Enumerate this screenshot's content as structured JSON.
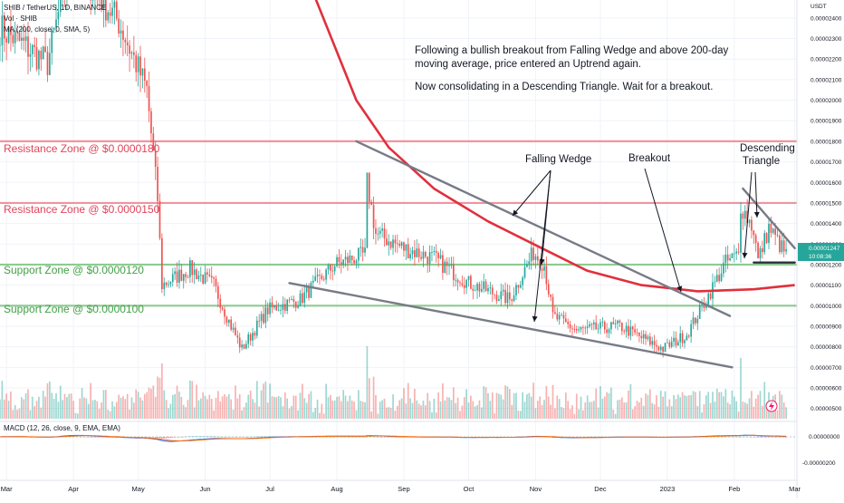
{
  "header": {
    "symbol_line": "SHIB / TetherUS, 1D, BINANCE",
    "vol_line": "Vol · SHIB",
    "ma_line": "MA (200, close, 0, SMA, 5)",
    "macd_line": "MACD (12, 26, close, 9, EMA, EMA)"
  },
  "price_axis": {
    "currency": "USDT",
    "last_price": "0.00001247",
    "countdown": "10:08:36",
    "macd_ticks": [
      "0.00000000",
      "-0.00000200"
    ]
  },
  "annotations": {
    "main_note_line1": "Following a bullish breakout from Falling Wedge and above 200-day",
    "main_note_line2": "moving average, price entered an Uptrend again.",
    "main_note_line3": "Now consolidating in a Descending Triangle. Wait for a breakout.",
    "falling_wedge": "Falling Wedge",
    "breakout": "Breakout",
    "descending_line1": "Descending",
    "descending_line2": "Triangle"
  },
  "chart_data": {
    "type": "candlestick",
    "title": "SHIB / TetherUS, 1D, BINANCE",
    "x_axis_labels": [
      "Mar",
      "Apr",
      "May",
      "Jun",
      "Jul",
      "Aug",
      "Sep",
      "Oct",
      "Nov",
      "Dec",
      "2023",
      "Feb",
      "Mar"
    ],
    "y_axis_ticks": [
      2.4e-05,
      2.3e-05,
      2.2e-05,
      2.1e-05,
      2e-05,
      1.9e-05,
      1.8e-05,
      1.7e-05,
      1.6e-05,
      1.5e-05,
      1.4e-05,
      1.3e-05,
      1.2e-05,
      1.1e-05,
      1e-05,
      9e-06,
      8e-06,
      7e-06,
      6e-06,
      5e-06
    ],
    "y_axis_tick_labels": [
      "0.00002400",
      "0.00002300",
      "0.00002200",
      "0.00002100",
      "0.00002000",
      "0.00001900",
      "0.00001800",
      "0.00001700",
      "0.00001600",
      "0.00001500",
      "0.00001400",
      "0.00001300",
      "0.00001200",
      "0.00001100",
      "0.00001000",
      "0.00000900",
      "0.00000800",
      "0.00000700",
      "0.00000600",
      "0.00000500"
    ],
    "ylim": [
      4.5e-06,
      2.47e-05
    ],
    "price_path": [
      {
        "x": "2022-02-26",
        "y": 2.35e-05
      },
      {
        "x": "2022-03-10",
        "y": 2.26e-05
      },
      {
        "x": "2022-03-20",
        "y": 2.18e-05
      },
      {
        "x": "2022-03-31",
        "y": 2.7e-05
      },
      {
        "x": "2022-04-10",
        "y": 2.55e-05
      },
      {
        "x": "2022-04-22",
        "y": 2.38e-05
      },
      {
        "x": "2022-05-05",
        "y": 2.05e-05
      },
      {
        "x": "2022-05-10",
        "y": 1.52e-05
      },
      {
        "x": "2022-05-12",
        "y": 1.1e-05
      },
      {
        "x": "2022-05-25",
        "y": 1.18e-05
      },
      {
        "x": "2022-06-05",
        "y": 1.1e-05
      },
      {
        "x": "2022-06-13",
        "y": 9e-06
      },
      {
        "x": "2022-06-18",
        "y": 7.9e-06
      },
      {
        "x": "2022-06-30",
        "y": 9.8e-06
      },
      {
        "x": "2022-07-15",
        "y": 1.03e-05
      },
      {
        "x": "2022-07-31",
        "y": 1.2e-05
      },
      {
        "x": "2022-08-14",
        "y": 1.25e-05
      },
      {
        "x": "2022-08-15",
        "y": 1.6e-05
      },
      {
        "x": "2022-08-19",
        "y": 1.35e-05
      },
      {
        "x": "2022-09-01",
        "y": 1.28e-05
      },
      {
        "x": "2022-09-15",
        "y": 1.23e-05
      },
      {
        "x": "2022-10-01",
        "y": 1.11e-05
      },
      {
        "x": "2022-10-20",
        "y": 1.03e-05
      },
      {
        "x": "2022-10-31",
        "y": 1.26e-05
      },
      {
        "x": "2022-11-05",
        "y": 1.2e-05
      },
      {
        "x": "2022-11-09",
        "y": 9.5e-06
      },
      {
        "x": "2022-11-20",
        "y": 8.8e-06
      },
      {
        "x": "2022-12-10",
        "y": 9e-06
      },
      {
        "x": "2022-12-30",
        "y": 7.9e-06
      },
      {
        "x": "2023-01-10",
        "y": 8.6e-06
      },
      {
        "x": "2023-01-20",
        "y": 1.05e-05
      },
      {
        "x": "2023-01-28",
        "y": 1.21e-05
      },
      {
        "x": "2023-02-03",
        "y": 1.25e-05
      },
      {
        "x": "2023-02-04",
        "y": 1.49e-05
      },
      {
        "x": "2023-02-10",
        "y": 1.37e-05
      },
      {
        "x": "2023-02-12",
        "y": 1.22e-05
      },
      {
        "x": "2023-02-17",
        "y": 1.38e-05
      },
      {
        "x": "2023-02-25",
        "y": 1.247e-05
      }
    ],
    "ma_200": [
      {
        "x": "2022-07-20",
        "y": 2.55e-05
      },
      {
        "x": "2022-08-10",
        "y": 2e-05
      },
      {
        "x": "2022-08-25",
        "y": 1.77e-05
      },
      {
        "x": "2022-09-15",
        "y": 1.57e-05
      },
      {
        "x": "2022-10-10",
        "y": 1.41e-05
      },
      {
        "x": "2022-10-31",
        "y": 1.3e-05
      },
      {
        "x": "2022-11-25",
        "y": 1.17e-05
      },
      {
        "x": "2022-12-20",
        "y": 1.1e-05
      },
      {
        "x": "2023-01-15",
        "y": 1.07e-05
      },
      {
        "x": "2023-02-10",
        "y": 1.08e-05
      },
      {
        "x": "2023-03-01",
        "y": 1.1e-05
      }
    ],
    "horizontal_levels": [
      {
        "label": "Resistance Zone @ $0.0000180",
        "value": 1.8e-05,
        "kind": "resistance"
      },
      {
        "label": "Resistance Zone @ $0.0000150",
        "value": 1.5e-05,
        "kind": "resistance"
      },
      {
        "label": "Support Zone @ $0.0000120",
        "value": 1.2e-05,
        "kind": "support"
      },
      {
        "label": "Support Zone @ $0.0000100",
        "value": 1e-05,
        "kind": "support"
      }
    ],
    "trendlines": [
      {
        "name": "falling-wedge-upper",
        "from": {
          "x": "2022-08-10",
          "y": 1.8e-05
        },
        "to": {
          "x": "2023-01-30",
          "y": 9.5e-06
        }
      },
      {
        "name": "falling-wedge-lower",
        "from": {
          "x": "2022-07-10",
          "y": 1.11e-05
        },
        "to": {
          "x": "2023-01-31",
          "y": 7e-06
        }
      },
      {
        "name": "triangle-upper",
        "from": {
          "x": "2023-02-05",
          "y": 1.57e-05
        },
        "to": {
          "x": "2023-03-01",
          "y": 1.28e-05
        }
      },
      {
        "name": "triangle-support",
        "from": {
          "x": "2023-02-10",
          "y": 1.21e-05
        },
        "to": {
          "x": "2023-03-01",
          "y": 1.21e-05
        }
      }
    ],
    "colors": {
      "up": "#26a69a",
      "down": "#ef5350",
      "ma": "#e0303c",
      "resistance": "#f08a96",
      "support": "#81c784",
      "trendline": "#787b86",
      "macd": "#2962ff",
      "signal": "#ff6d00"
    }
  }
}
